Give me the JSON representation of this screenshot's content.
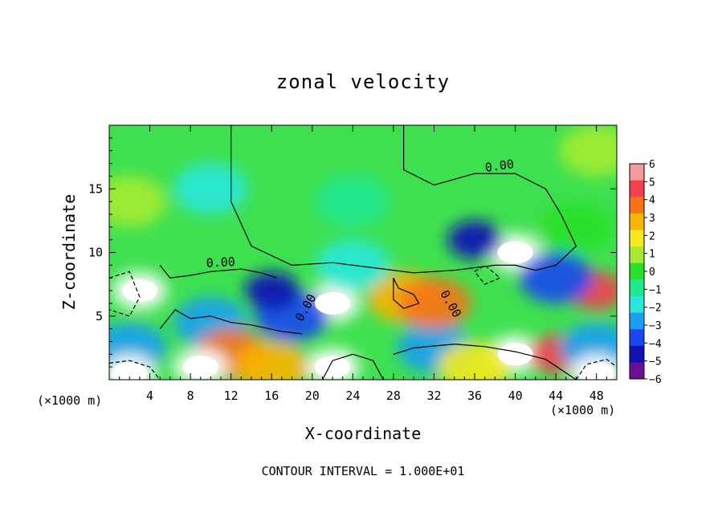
{
  "chart_data": {
    "type": "heatmap",
    "title": "zonal velocity",
    "xlabel": "X-coordinate",
    "ylabel": "Z-coordinate",
    "x_unit_label": "(×1000 m)",
    "x_ticks": [
      4,
      8,
      12,
      16,
      20,
      24,
      28,
      32,
      36,
      40,
      44,
      48
    ],
    "y_ticks": [
      5,
      10,
      15
    ],
    "xlim": [
      0,
      50
    ],
    "ylim": [
      0,
      20
    ],
    "colorbar": {
      "ticks": [
        6,
        5,
        4,
        3,
        2,
        1,
        0,
        -1,
        -2,
        -3,
        -4,
        -5,
        -6
      ],
      "colors": [
        "#f49a9a",
        "#f2404e",
        "#f67416",
        "#fbb400",
        "#f4ea1e",
        "#a4ec32",
        "#28e028",
        "#20e890",
        "#28e8dc",
        "#1aa0f0",
        "#1848ee",
        "#1010b4",
        "#6a0f96"
      ]
    },
    "contour_labels": [
      "0.00",
      "0.00",
      "0.00",
      "0.00"
    ],
    "contour_interval": "CONTOUR INTERVAL = 1.000E+01",
    "features": [
      {
        "x": 40,
        "z": 10,
        "value": 6
      },
      {
        "x": 36,
        "z": 11,
        "value": -5
      },
      {
        "x": 22,
        "z": 6,
        "value": 6
      },
      {
        "x": 18,
        "z": 5,
        "value": -4
      },
      {
        "x": 16,
        "z": 7,
        "value": -5
      },
      {
        "x": 10,
        "z": 4.5,
        "value": -3
      },
      {
        "x": 12,
        "z": 2,
        "value": 4
      },
      {
        "x": 9,
        "z": 1,
        "value": 6
      },
      {
        "x": 3,
        "z": 7,
        "value": 6
      },
      {
        "x": 48,
        "z": 7,
        "value": 5
      },
      {
        "x": 40,
        "z": 2,
        "value": 6
      },
      {
        "x": 44,
        "z": 2,
        "value": 5
      },
      {
        "x": 22,
        "z": 1,
        "value": 6
      },
      {
        "x": 32,
        "z": 2.5,
        "value": -3
      },
      {
        "x": 29,
        "z": 6.5,
        "value": 3
      },
      {
        "x": 32,
        "z": 6,
        "value": 4
      },
      {
        "x": 10,
        "z": 15,
        "value": -1.5
      },
      {
        "x": 24,
        "z": 14,
        "value": -1
      },
      {
        "x": 24,
        "z": 9,
        "value": -2
      },
      {
        "x": 46,
        "z": 12,
        "value": 0.5
      },
      {
        "x": 2,
        "z": 14,
        "value": 1
      },
      {
        "x": 48,
        "z": 18,
        "value": 1.5
      },
      {
        "x": 44,
        "z": 8,
        "value": -4
      },
      {
        "x": 2,
        "z": 2.5,
        "value": -3
      },
      {
        "x": 48,
        "z": 2.5,
        "value": -3
      },
      {
        "x": 2,
        "z": 0.5,
        "value": 6
      },
      {
        "x": 48,
        "z": 0.5,
        "value": 6
      },
      {
        "x": 16,
        "z": 1,
        "value": 3
      },
      {
        "x": 36,
        "z": 1,
        "value": 2
      }
    ]
  }
}
